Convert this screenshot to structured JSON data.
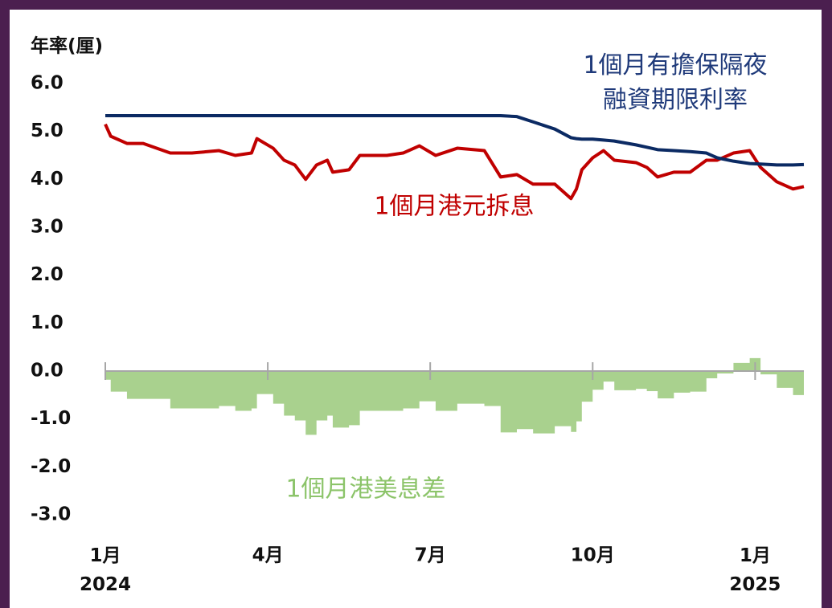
{
  "chart_data": {
    "type": "line",
    "y_axis_label": "年率(厘)",
    "x": [
      0,
      0.1,
      0.4,
      0.7,
      1.2,
      1.6,
      2.1,
      2.4,
      2.7,
      2.8,
      3.1,
      3.3,
      3.5,
      3.7,
      3.9,
      4.1,
      4.2,
      4.5,
      4.7,
      5.2,
      5.5,
      5.8,
      6.1,
      6.5,
      7.0,
      7.3,
      7.6,
      7.9,
      8.3,
      8.6,
      8.7,
      8.8,
      9.0,
      9.2,
      9.4,
      9.8,
      10.0,
      10.2,
      10.5,
      10.8,
      11.1,
      11.3,
      11.6,
      11.9,
      12.1,
      12.4,
      12.7,
      12.9
    ],
    "series": [
      {
        "name": "1個月港美息差",
        "color": "#a9d18e",
        "label_color": "#8cc46a",
        "style": "area",
        "values": [
          -0.18,
          -0.43,
          -0.58,
          -0.58,
          -0.78,
          -0.78,
          -0.73,
          -0.83,
          -0.78,
          -0.48,
          -0.68,
          -0.93,
          -1.03,
          -1.33,
          -1.03,
          -0.93,
          -1.18,
          -1.13,
          -0.83,
          -0.83,
          -0.78,
          -0.63,
          -0.83,
          -0.68,
          -0.73,
          -1.28,
          -1.21,
          -1.3,
          -1.15,
          -1.27,
          -1.05,
          -0.64,
          -0.39,
          -0.22,
          -0.4,
          -0.37,
          -0.42,
          -0.57,
          -0.45,
          -0.43,
          -0.15,
          -0.05,
          0.17,
          0.27,
          -0.07,
          -0.35,
          -0.5,
          -0.46
        ]
      },
      {
        "name": "1個月港元拆息",
        "color": "#c00000",
        "label_color": "#c00000",
        "style": "line",
        "values": [
          5.15,
          4.9,
          4.75,
          4.75,
          4.55,
          4.55,
          4.6,
          4.5,
          4.55,
          4.85,
          4.65,
          4.4,
          4.3,
          4.0,
          4.3,
          4.4,
          4.15,
          4.2,
          4.5,
          4.5,
          4.55,
          4.7,
          4.5,
          4.65,
          4.6,
          4.05,
          4.1,
          3.9,
          3.9,
          3.6,
          3.8,
          4.2,
          4.45,
          4.6,
          4.4,
          4.35,
          4.25,
          4.05,
          4.15,
          4.15,
          4.4,
          4.4,
          4.55,
          4.6,
          4.25,
          3.95,
          3.8,
          3.85
        ]
      },
      {
        "name": "1個月有擔保隔夜\n融資期限利率",
        "color": "#0b2a63",
        "label_color": "#1f3a7a",
        "style": "line",
        "values": [
          5.33,
          5.33,
          5.33,
          5.33,
          5.33,
          5.33,
          5.33,
          5.33,
          5.33,
          5.33,
          5.33,
          5.33,
          5.33,
          5.33,
          5.33,
          5.33,
          5.33,
          5.33,
          5.33,
          5.33,
          5.33,
          5.33,
          5.33,
          5.33,
          5.33,
          5.33,
          5.31,
          5.2,
          5.05,
          4.87,
          4.85,
          4.84,
          4.84,
          4.82,
          4.8,
          4.72,
          4.67,
          4.62,
          4.6,
          4.58,
          4.55,
          4.45,
          4.38,
          4.33,
          4.32,
          4.3,
          4.3,
          4.31
        ]
      }
    ],
    "xlim": [
      0,
      12.9
    ],
    "xticks": [
      {
        "value": 0,
        "label": "1月\n2024"
      },
      {
        "value": 3,
        "label": "4月"
      },
      {
        "value": 6,
        "label": "7月"
      },
      {
        "value": 9,
        "label": "10月"
      },
      {
        "value": 12,
        "label": "1月\n2025"
      }
    ],
    "ylim": [
      -3,
      6
    ],
    "yticks": [
      {
        "value": 6,
        "label": "6.0"
      },
      {
        "value": 5,
        "label": "5.0"
      },
      {
        "value": 4,
        "label": "4.0"
      },
      {
        "value": 3,
        "label": "3.0"
      },
      {
        "value": 2,
        "label": "2.0"
      },
      {
        "value": 1,
        "label": "1.0"
      },
      {
        "value": 0,
        "label": "0.0"
      },
      {
        "value": -1,
        "label": "-1.0"
      },
      {
        "value": -2,
        "label": "-2.0"
      },
      {
        "value": -3,
        "label": "-3.0"
      }
    ],
    "grid": false
  }
}
